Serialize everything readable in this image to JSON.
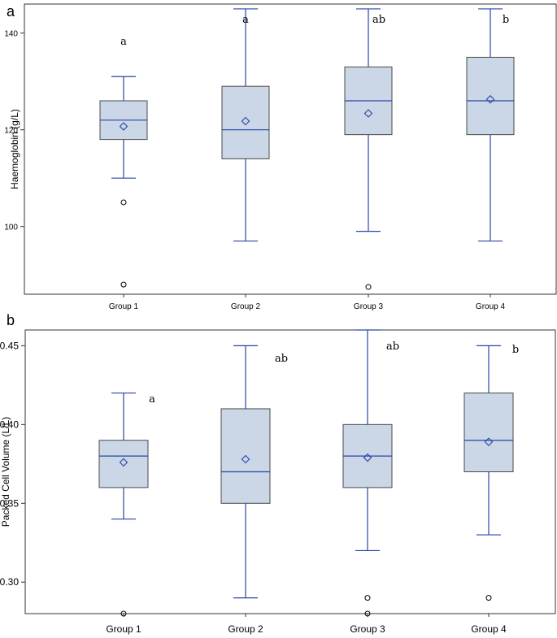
{
  "chart_data": [
    {
      "panel_label": "a",
      "type": "box",
      "title": "",
      "xlabel": "",
      "ylabel": "Haemoglobin (g/L)",
      "ylim": [
        86,
        146
      ],
      "yticks": [
        100,
        120,
        140
      ],
      "ytick_labels": [
        "100",
        "120",
        "140"
      ],
      "grid": false,
      "categories": [
        "Group 1",
        "Group 2",
        "Group 3",
        "Group 4"
      ],
      "boxes": [
        {
          "whisker_low": 110,
          "q1": 118,
          "median": 122,
          "q3": 126,
          "whisker_high": 131,
          "mean": 120.7,
          "outliers": [
            105,
            88
          ],
          "significance": "a"
        },
        {
          "whisker_low": 97,
          "q1": 114,
          "median": 120,
          "q3": 129,
          "whisker_high": 145,
          "mean": 121.8,
          "outliers": [],
          "significance": "a"
        },
        {
          "whisker_low": 99,
          "q1": 119,
          "median": 126,
          "q3": 133,
          "whisker_high": 145,
          "mean": 123.4,
          "outliers": [
            87.5
          ],
          "significance": "ab"
        },
        {
          "whisker_low": 97,
          "q1": 119,
          "median": 126,
          "q3": 135,
          "whisker_high": 145,
          "mean": 126.3,
          "outliers": [],
          "significance": "b"
        }
      ]
    },
    {
      "panel_label": "b",
      "type": "box",
      "title": "",
      "xlabel": "",
      "ylabel": "Packed Cell Volume (L/L)",
      "ylim": [
        0.28,
        0.46
      ],
      "yticks": [
        0.3,
        0.35,
        0.4,
        0.45
      ],
      "ytick_labels": [
        "0.30",
        "0.35",
        "0.40",
        "0.45"
      ],
      "grid": false,
      "categories": [
        "Group 1",
        "Group 2",
        "Group 3",
        "Group 4"
      ],
      "boxes": [
        {
          "whisker_low": 0.34,
          "q1": 0.36,
          "median": 0.38,
          "q3": 0.39,
          "whisker_high": 0.42,
          "mean": 0.376,
          "outliers": [
            0.28
          ],
          "significance": "a"
        },
        {
          "whisker_low": 0.29,
          "q1": 0.35,
          "median": 0.37,
          "q3": 0.41,
          "whisker_high": 0.45,
          "mean": 0.378,
          "outliers": [],
          "significance": "ab"
        },
        {
          "whisker_low": 0.32,
          "q1": 0.36,
          "median": 0.38,
          "q3": 0.4,
          "whisker_high": 0.46,
          "mean": 0.379,
          "outliers": [
            0.29,
            0.28
          ],
          "significance": "ab"
        },
        {
          "whisker_low": 0.33,
          "q1": 0.37,
          "median": 0.39,
          "q3": 0.42,
          "whisker_high": 0.45,
          "mean": 0.389,
          "outliers": [
            0.29
          ],
          "significance": "b"
        }
      ]
    }
  ],
  "colors": {
    "box_fill": "#cbd6e6",
    "box_stroke": "#4a4a4a",
    "whisker": "#2646a8",
    "median": "#2646a8",
    "mean_marker": "#2646a8",
    "outlier": "#000000",
    "frame": "#333333"
  }
}
